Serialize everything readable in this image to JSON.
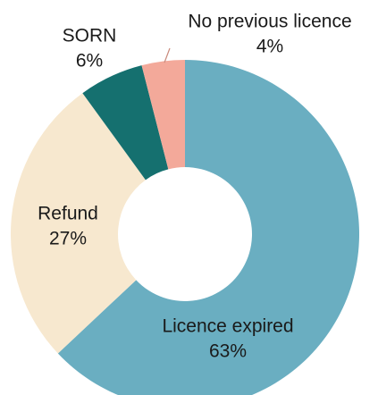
{
  "chart_data": {
    "type": "donut",
    "categories": [
      "Licence expired",
      "Refund",
      "SORN",
      "No previous licence"
    ],
    "values": [
      63,
      27,
      6,
      4
    ],
    "value_labels": [
      "63%",
      "27%",
      "6%",
      "4%"
    ],
    "colors": [
      "#6aaec1",
      "#f7e8cf",
      "#15706f",
      "#f3a99a"
    ]
  }
}
